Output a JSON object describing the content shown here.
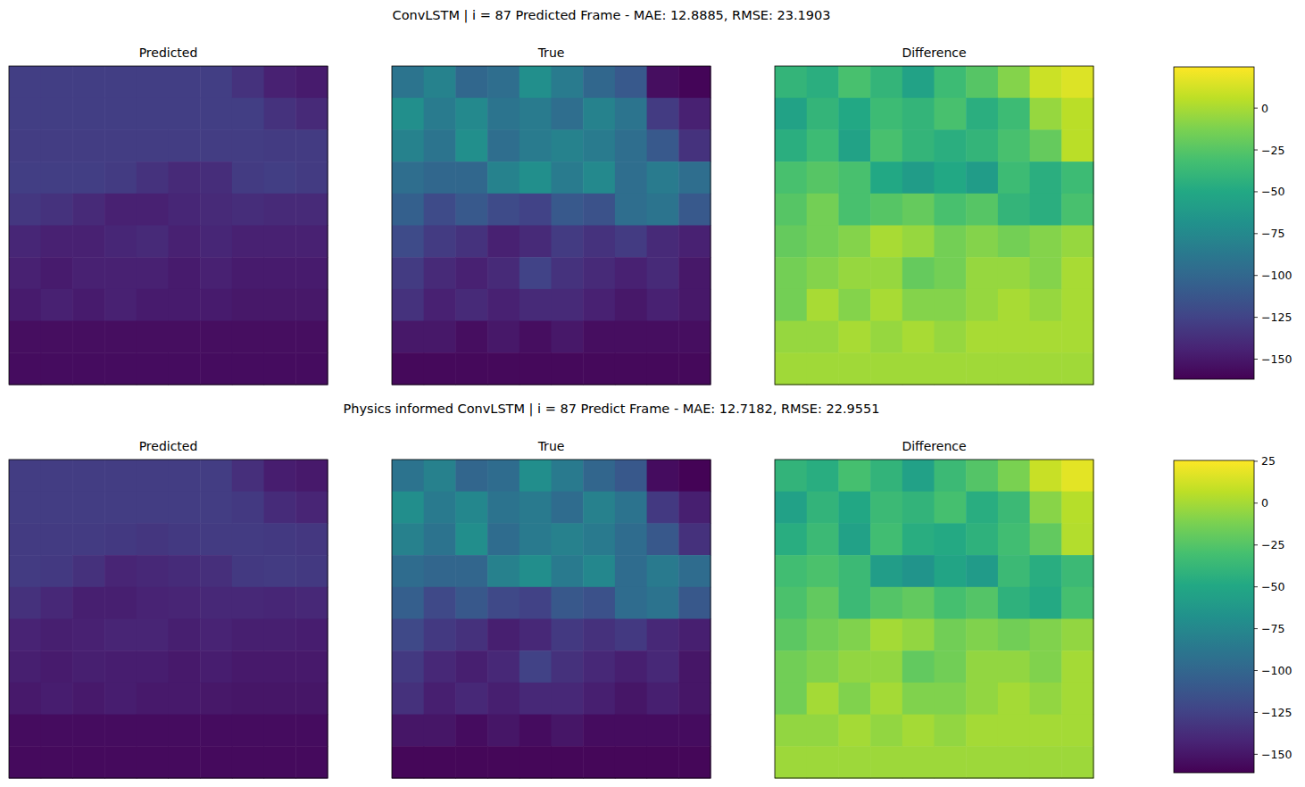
{
  "chart_data": [
    {
      "type": "heatmap",
      "title": "ConvLSTM | i = 87 Predicted Frame - MAE: 12.8885, RMSE: 23.1903",
      "tick_labels": false,
      "panels": [
        {
          "title": "Predicted",
          "cells": [
            [
              -128,
              -128,
              -128,
              -128,
              -128,
              -128,
              -128,
              -135,
              -145,
              -148
            ],
            [
              -128,
              -128,
              -128,
              -128,
              -128,
              -128,
              -128,
              -128,
              -135,
              -140
            ],
            [
              -129,
              -129,
              -129,
              -129,
              -129,
              -129,
              -129,
              -129,
              -130,
              -130
            ],
            [
              -128,
              -128,
              -128,
              -130,
              -135,
              -140,
              -138,
              -130,
              -128,
              -130
            ],
            [
              -132,
              -135,
              -140,
              -145,
              -145,
              -142,
              -140,
              -138,
              -140,
              -140
            ],
            [
              -142,
              -145,
              -145,
              -142,
              -140,
              -145,
              -142,
              -145,
              -145,
              -145
            ],
            [
              -145,
              -148,
              -145,
              -145,
              -145,
              -148,
              -145,
              -148,
              -148,
              -148
            ],
            [
              -148,
              -145,
              -148,
              -145,
              -148,
              -148,
              -148,
              -150,
              -150,
              -150
            ],
            [
              -155,
              -155,
              -155,
              -155,
              -155,
              -155,
              -155,
              -155,
              -155,
              -155
            ],
            [
              -156,
              -156,
              -156,
              -156,
              -156,
              -156,
              -156,
              -156,
              -156,
              -156
            ]
          ]
        },
        {
          "title": "True",
          "cells": [
            [
              -90,
              -80,
              -100,
              -95,
              -70,
              -85,
              -100,
              -110,
              -155,
              -160
            ],
            [
              -70,
              -85,
              -75,
              -90,
              -85,
              -95,
              -80,
              -90,
              -130,
              -145
            ],
            [
              -80,
              -90,
              -70,
              -95,
              -85,
              -80,
              -85,
              -95,
              -110,
              -135
            ],
            [
              -95,
              -100,
              -100,
              -80,
              -70,
              -85,
              -75,
              -95,
              -85,
              -95
            ],
            [
              -105,
              -120,
              -110,
              -120,
              -125,
              -110,
              -115,
              -95,
              -90,
              -110
            ],
            [
              -120,
              -130,
              -135,
              -145,
              -140,
              -130,
              -135,
              -130,
              -140,
              -145
            ],
            [
              -130,
              -140,
              -145,
              -140,
              -125,
              -135,
              -140,
              -145,
              -140,
              -150
            ],
            [
              -135,
              -145,
              -140,
              -145,
              -140,
              -140,
              -145,
              -150,
              -145,
              -150
            ],
            [
              -150,
              -150,
              -155,
              -150,
              -155,
              -150,
              -155,
              -155,
              -155,
              -155
            ],
            [
              -158,
              -158,
              -158,
              -158,
              -158,
              -158,
              -158,
              -158,
              -158,
              -158
            ]
          ]
        },
        {
          "title": "Difference",
          "cells": [
            [
              -40,
              -45,
              -30,
              -40,
              -55,
              -35,
              -25,
              -10,
              10,
              15
            ],
            [
              -55,
              -40,
              -50,
              -35,
              -40,
              -30,
              -45,
              -35,
              -5,
              5
            ],
            [
              -45,
              -35,
              -55,
              -30,
              -40,
              -45,
              -40,
              -30,
              -20,
              5
            ],
            [
              -30,
              -25,
              -30,
              -50,
              -60,
              -50,
              -60,
              -35,
              -45,
              -35
            ],
            [
              -25,
              -15,
              -30,
              -25,
              -20,
              -30,
              -25,
              -40,
              -45,
              -30
            ],
            [
              -20,
              -15,
              -10,
              0,
              -5,
              -15,
              -10,
              -15,
              -10,
              -5
            ],
            [
              -15,
              -10,
              -5,
              -5,
              -20,
              -15,
              -5,
              -5,
              -10,
              0
            ],
            [
              -15,
              0,
              -10,
              0,
              -10,
              -10,
              -5,
              0,
              -5,
              0
            ],
            [
              -5,
              -5,
              0,
              -5,
              0,
              -5,
              0,
              0,
              0,
              0
            ],
            [
              -2,
              -2,
              -2,
              -2,
              -2,
              -2,
              -2,
              -2,
              -2,
              -2
            ]
          ]
        }
      ],
      "colorbar": {
        "range": [
          -162,
          24.6
        ],
        "ticks": [
          {
            "value": 0,
            "label": "0"
          },
          {
            "value": -25,
            "label": "−25"
          },
          {
            "value": -50,
            "label": "−50"
          },
          {
            "value": -75,
            "label": "−75"
          },
          {
            "value": -100,
            "label": "−100"
          },
          {
            "value": -125,
            "label": "−125"
          },
          {
            "value": -150,
            "label": "−150"
          }
        ]
      }
    },
    {
      "type": "heatmap",
      "title": "Physics informed ConvLSTM | i = 87 Predict Frame - MAE: 12.7182, RMSE: 22.9551",
      "tick_labels": false,
      "panels": [
        {
          "title": "Predicted",
          "cells": [
            [
              -128,
              -128,
              -128,
              -128,
              -128,
              -128,
              -128,
              -136,
              -146,
              -148
            ],
            [
              -128,
              -128,
              -128,
              -128,
              -128,
              -128,
              -128,
              -130,
              -138,
              -142
            ],
            [
              -129,
              -129,
              -129,
              -130,
              -132,
              -130,
              -129,
              -129,
              -130,
              -131
            ],
            [
              -129,
              -130,
              -135,
              -142,
              -140,
              -138,
              -136,
              -130,
              -129,
              -130
            ],
            [
              -135,
              -140,
              -145,
              -145,
              -143,
              -142,
              -140,
              -140,
              -141,
              -140
            ],
            [
              -143,
              -145,
              -144,
              -142,
              -142,
              -145,
              -143,
              -145,
              -145,
              -146
            ],
            [
              -145,
              -147,
              -145,
              -146,
              -146,
              -148,
              -146,
              -148,
              -148,
              -148
            ],
            [
              -148,
              -146,
              -148,
              -146,
              -148,
              -148,
              -149,
              -150,
              -150,
              -150
            ],
            [
              -155,
              -155,
              -155,
              -155,
              -155,
              -155,
              -155,
              -155,
              -155,
              -155
            ],
            [
              -156,
              -156,
              -156,
              -156,
              -156,
              -156,
              -156,
              -156,
              -156,
              -156
            ]
          ]
        },
        {
          "title": "True",
          "cells": [
            [
              -90,
              -80,
              -100,
              -95,
              -70,
              -85,
              -100,
              -110,
              -155,
              -160
            ],
            [
              -70,
              -85,
              -75,
              -90,
              -85,
              -95,
              -80,
              -90,
              -130,
              -145
            ],
            [
              -80,
              -90,
              -70,
              -95,
              -85,
              -80,
              -85,
              -95,
              -110,
              -135
            ],
            [
              -95,
              -100,
              -100,
              -80,
              -70,
              -85,
              -75,
              -95,
              -85,
              -95
            ],
            [
              -105,
              -120,
              -110,
              -120,
              -125,
              -110,
              -115,
              -95,
              -90,
              -110
            ],
            [
              -120,
              -130,
              -135,
              -145,
              -140,
              -130,
              -135,
              -130,
              -140,
              -145
            ],
            [
              -130,
              -140,
              -145,
              -140,
              -125,
              -135,
              -140,
              -145,
              -140,
              -150
            ],
            [
              -135,
              -145,
              -140,
              -145,
              -140,
              -140,
              -145,
              -150,
              -145,
              -150
            ],
            [
              -150,
              -150,
              -155,
              -150,
              -155,
              -150,
              -155,
              -155,
              -155,
              -155
            ],
            [
              -158,
              -158,
              -158,
              -158,
              -158,
              -158,
              -158,
              -158,
              -158,
              -158
            ]
          ]
        },
        {
          "title": "Difference",
          "cells": [
            [
              -40,
              -45,
              -30,
              -40,
              -55,
              -35,
              -25,
              -12,
              10,
              18
            ],
            [
              -55,
              -40,
              -50,
              -35,
              -40,
              -30,
              -45,
              -35,
              -8,
              5
            ],
            [
              -45,
              -35,
              -55,
              -32,
              -45,
              -48,
              -42,
              -32,
              -20,
              4
            ],
            [
              -32,
              -28,
              -35,
              -58,
              -65,
              -52,
              -60,
              -35,
              -45,
              -35
            ],
            [
              -28,
              -20,
              -35,
              -25,
              -20,
              -30,
              -25,
              -42,
              -48,
              -30
            ],
            [
              -22,
              -15,
              -10,
              0,
              -5,
              -15,
              -10,
              -15,
              -10,
              -5
            ],
            [
              -15,
              -10,
              -5,
              -5,
              -20,
              -15,
              -5,
              -5,
              -10,
              0
            ],
            [
              -15,
              0,
              -10,
              0,
              -10,
              -10,
              -5,
              0,
              -5,
              0
            ],
            [
              -5,
              -5,
              0,
              -5,
              0,
              -5,
              0,
              0,
              0,
              0
            ],
            [
              -2,
              -2,
              -2,
              -2,
              -2,
              -2,
              -2,
              -2,
              -2,
              -2
            ]
          ]
        }
      ],
      "colorbar": {
        "range": [
          -161,
          25.5
        ],
        "ticks": [
          {
            "value": 25,
            "label": "25"
          },
          {
            "value": 0,
            "label": "0"
          },
          {
            "value": -25,
            "label": "−25"
          },
          {
            "value": -50,
            "label": "−50"
          },
          {
            "value": -75,
            "label": "−75"
          },
          {
            "value": -100,
            "label": "−100"
          },
          {
            "value": -125,
            "label": "−125"
          },
          {
            "value": -150,
            "label": "−150"
          }
        ]
      }
    }
  ]
}
